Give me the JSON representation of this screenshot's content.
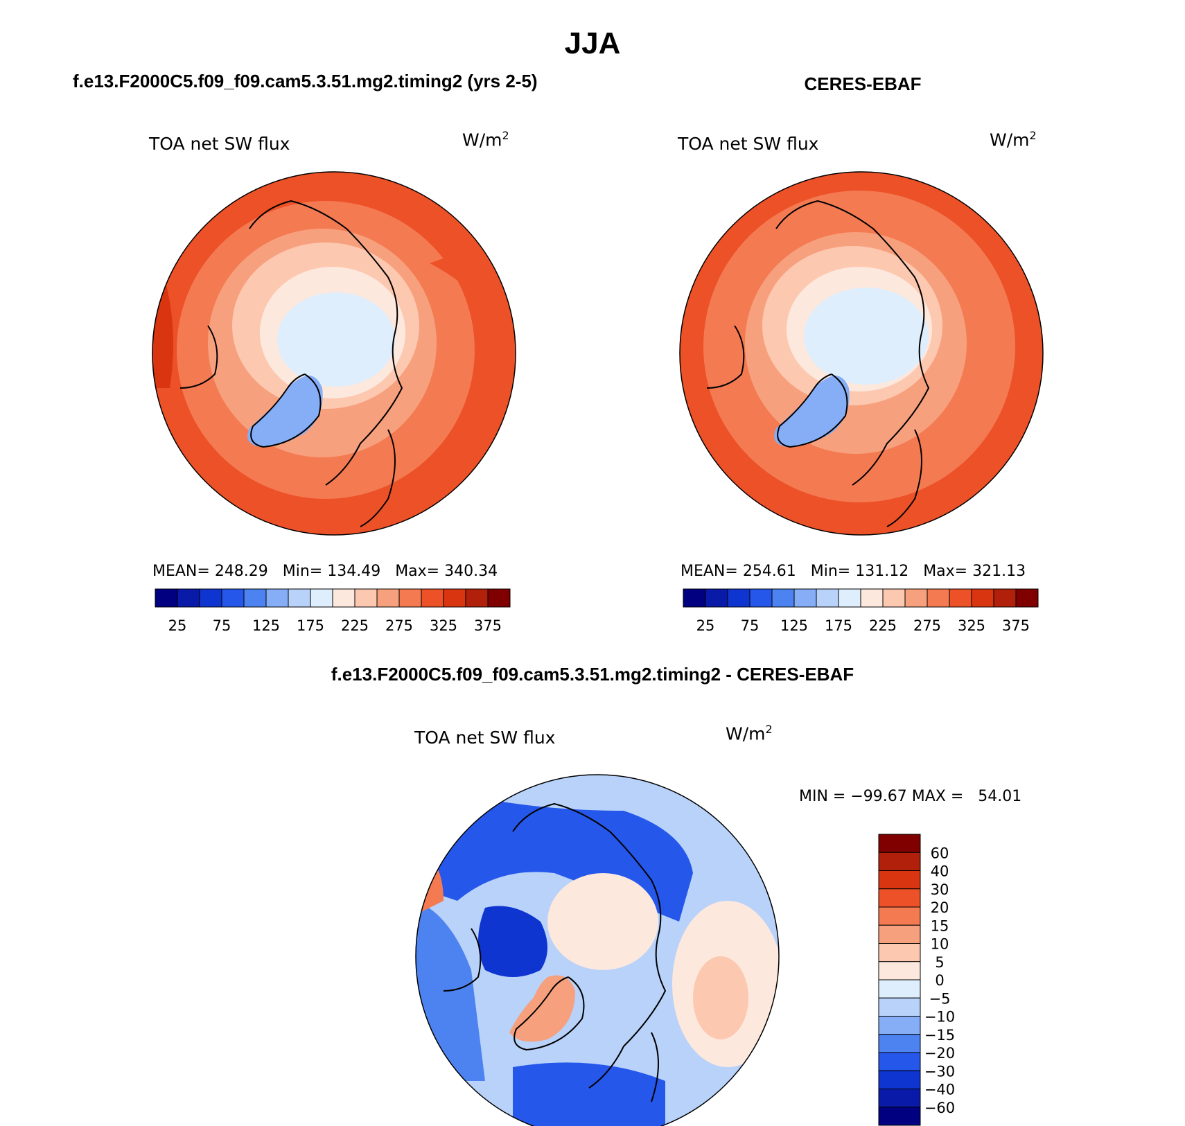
{
  "figure": {
    "title": "JJA"
  },
  "panels": [
    {
      "id": "model",
      "header": "f.e13.F2000C5.f09_f09.cam5.3.51.mg2.timing2 (yrs 2-5)",
      "variable": "TOA net SW flux",
      "units_base": "W/m",
      "units_exp": "2",
      "stats": "MEAN= 248.29   Min= 134.49   Max= 340.34",
      "colorbar_ticks": [
        "25",
        "75",
        "125",
        "175",
        "225",
        "275",
        "325",
        "375"
      ]
    },
    {
      "id": "obs",
      "header": "CERES-EBAF",
      "variable": "TOA net SW flux",
      "units_base": "W/m",
      "units_exp": "2",
      "stats": "MEAN= 254.61   Min= 131.12   Max= 321.13",
      "colorbar_ticks": [
        "25",
        "75",
        "125",
        "175",
        "225",
        "275",
        "325",
        "375"
      ]
    }
  ],
  "diff": {
    "header": "f.e13.F2000C5.f09_f09.cam5.3.51.mg2.timing2 - CERES-EBAF",
    "variable": "TOA net SW flux",
    "units_base": "W/m",
    "units_exp": "2",
    "stats": "MIN = −99.67 MAX =   54.01",
    "colorbar_labels": [
      "60",
      "40",
      "30",
      "20",
      "15",
      "10",
      "5",
      "0",
      "−5",
      "−10",
      "−15",
      "−20",
      "−30",
      "−40",
      "−60"
    ]
  },
  "colors": {
    "sequential": [
      "#000080",
      "#0a1aa8",
      "#0f35d0",
      "#2557ea",
      "#4d83f0",
      "#86aef6",
      "#b8d2fa",
      "#deeefd",
      "#fde8dd",
      "#fdc8b0",
      "#f7a07d",
      "#f47a52",
      "#ec5128",
      "#d93510",
      "#b0200a",
      "#800000"
    ],
    "diverging": [
      "#800000",
      "#b0200a",
      "#d93510",
      "#ec5128",
      "#f47a52",
      "#f7a07d",
      "#fdc8b0",
      "#fde8dd",
      "#deeefd",
      "#b8d2fa",
      "#86aef6",
      "#4d83f0",
      "#2557ea",
      "#0f35d0",
      "#0a1aa8",
      "#000080"
    ]
  }
}
